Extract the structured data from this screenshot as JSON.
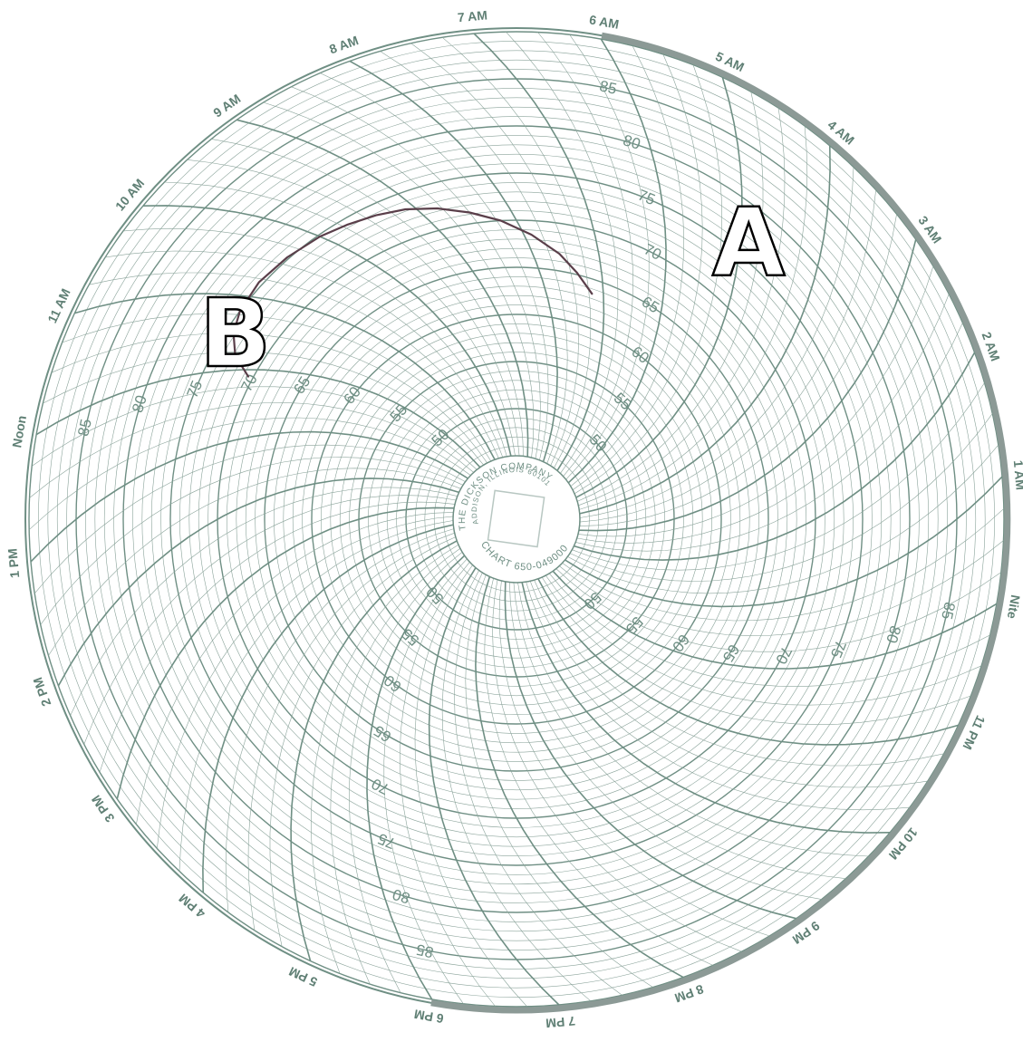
{
  "colors": {
    "grid": "#8aa39a",
    "grid_major": "#6f8f84",
    "label": "#5f7f74",
    "trace": "#5a3f4a",
    "night_band": "#8c9a96"
  },
  "chart_data": {
    "type": "line",
    "layout": "circular-24h",
    "hour_labels": [
      "Noon",
      "1 PM",
      "2 PM",
      "3 PM",
      "4 PM",
      "5 PM",
      "6 PM",
      "7 PM",
      "8 PM",
      "9 PM",
      "10 PM",
      "11 PM",
      "Nite",
      "1 AM",
      "2 AM",
      "3 AM",
      "4 AM",
      "5 AM",
      "6 AM",
      "7 AM",
      "8 AM",
      "9 AM",
      "10 AM",
      "11 AM"
    ],
    "scale_labels": [
      "50",
      "55",
      "60",
      "65",
      "70",
      "75",
      "80",
      "85"
    ],
    "scale_range": [
      45,
      90
    ],
    "brand": {
      "company": "THE DICKSON COMPANY",
      "address": "ADDISON, ILLINOIS 60101",
      "chart_no": "CHART 650-049000"
    },
    "annotations": {
      "a": "A",
      "b": "B"
    },
    "series": [
      {
        "t": [
          7.2,
          7.4,
          7.6,
          7.9,
          8.2,
          8.5,
          8.8,
          9.1,
          9.4,
          9.7,
          10.0,
          10.4,
          10.8,
          11.2,
          11.5,
          11.8,
          12.1
        ],
        "values": [
          63.5,
          65.2,
          66.8,
          68.5,
          70.0,
          71.2,
          72.3,
          73.2,
          73.8,
          74.3,
          74.8,
          75.2,
          75.4,
          75.0,
          74.2,
          72.8,
          70.5
        ]
      }
    ]
  }
}
